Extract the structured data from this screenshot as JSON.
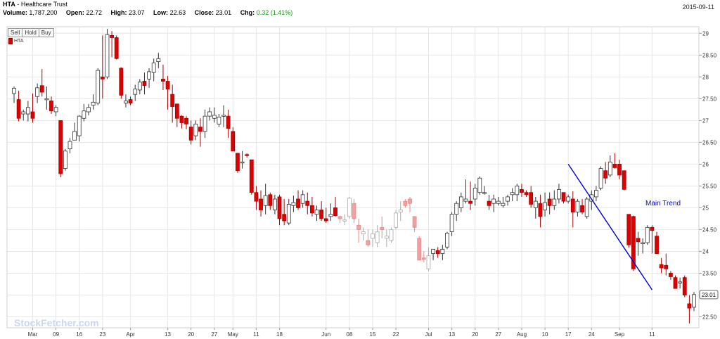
{
  "header": {
    "symbol": "HTA",
    "name": " - Healthcare Trust",
    "volume_label": "Volume:",
    "volume": "1,787,200",
    "open_label": "Open:",
    "open": "22.72",
    "high_label": "High:",
    "high": "23.07",
    "low_label": "Low:",
    "low": "22.63",
    "close_label": "Close:",
    "close": "23.01",
    "chg_label": "Chg:",
    "chg": "0.32 (1.41%)",
    "date": "2015-09-11"
  },
  "buttons": {
    "sell": "Sell",
    "hold": "Hold",
    "buy": "Buy"
  },
  "legend": {
    "label": "HTA"
  },
  "watermark": "StockFetcher.com",
  "colors": {
    "up": "#ffffff",
    "down": "#dd0000",
    "faded_down": "#f2a0a0",
    "trend": "#0000dd",
    "grid": "#e6e6e6"
  },
  "chart_data": {
    "type": "candlestick",
    "ylim": [
      22.25,
      29.15
    ],
    "y_ticks": [
      29,
      28.5,
      28,
      27.5,
      27,
      26.5,
      26,
      25.5,
      25,
      24.5,
      24,
      23.5,
      23,
      22.5
    ],
    "y_tick_labels": [
      "29",
      "28.50",
      "28",
      "27.50",
      "27",
      "26.50",
      "26",
      "25.50",
      "25",
      "24.50",
      "24",
      "23.50",
      "23",
      "22.50"
    ],
    "x_labels": [
      "Mar",
      "09",
      "16",
      "23",
      "Apr",
      "13",
      "20",
      "27",
      "May",
      "11",
      "18",
      "Jun",
      "08",
      "15",
      "22",
      "Jul",
      "13",
      "20",
      "27",
      "Aug",
      "10",
      "17",
      "24",
      "Sep",
      "11"
    ],
    "x_label_index": [
      4,
      9,
      14,
      19,
      25,
      33,
      38,
      43,
      47,
      52,
      57,
      67,
      72,
      77,
      82,
      89,
      94,
      99,
      104,
      109,
      114,
      119,
      124,
      130,
      137
    ],
    "last_price": "23.01",
    "annotation": "Main Trend",
    "trend_line": {
      "from": [
        119,
        26.0
      ],
      "to": [
        137,
        23.12
      ]
    },
    "candles": [
      [
        27.62,
        27.78,
        27.4,
        27.74
      ],
      [
        27.48,
        27.68,
        26.98,
        27.05
      ],
      [
        27.15,
        27.25,
        27.0,
        27.2
      ],
      [
        27.15,
        27.45,
        26.98,
        27.3
      ],
      [
        27.2,
        27.62,
        26.95,
        27.05
      ],
      [
        27.55,
        27.85,
        27.4,
        27.75
      ],
      [
        27.8,
        28.18,
        27.55,
        27.65
      ],
      [
        27.5,
        27.78,
        27.25,
        27.5
      ],
      [
        27.45,
        27.55,
        27.15,
        27.22
      ],
      [
        27.2,
        27.35,
        27.1,
        27.3
      ],
      [
        27.0,
        27.0,
        25.7,
        25.78
      ],
      [
        25.9,
        26.35,
        25.85,
        26.3
      ],
      [
        26.35,
        26.6,
        26.25,
        26.52
      ],
      [
        26.55,
        26.95,
        26.55,
        26.75
      ],
      [
        26.65,
        27.12,
        26.52,
        27.1
      ],
      [
        27.05,
        27.38,
        26.98,
        27.22
      ],
      [
        27.2,
        27.38,
        27.12,
        27.3
      ],
      [
        27.35,
        27.6,
        27.25,
        27.42
      ],
      [
        27.4,
        28.2,
        27.35,
        28.15
      ],
      [
        28.0,
        28.95,
        27.5,
        27.95
      ],
      [
        28.0,
        29.1,
        27.95,
        28.97
      ],
      [
        28.95,
        29.05,
        28.45,
        28.9
      ],
      [
        28.9,
        28.95,
        28.4,
        28.42
      ],
      [
        28.2,
        28.22,
        27.5,
        27.58
      ],
      [
        27.4,
        27.6,
        27.3,
        27.45
      ],
      [
        27.48,
        27.55,
        27.35,
        27.4
      ],
      [
        27.6,
        27.82,
        27.45,
        27.72
      ],
      [
        27.7,
        27.95,
        27.6,
        27.88
      ],
      [
        27.9,
        28.1,
        27.6,
        27.8
      ],
      [
        27.95,
        28.2,
        27.75,
        28.12
      ],
      [
        28.1,
        28.42,
        27.9,
        28.32
      ],
      [
        28.35,
        28.55,
        28.2,
        28.42
      ],
      [
        27.95,
        28.28,
        27.7,
        27.9
      ],
      [
        27.9,
        28.02,
        27.25,
        27.72
      ],
      [
        27.6,
        27.82,
        26.95,
        27.32
      ],
      [
        27.38,
        27.38,
        26.85,
        27.05
      ],
      [
        27.1,
        27.12,
        26.82,
        26.95
      ],
      [
        27.05,
        27.1,
        26.8,
        26.92
      ],
      [
        26.85,
        27.0,
        26.45,
        26.55
      ],
      [
        26.65,
        27.0,
        26.55,
        26.92
      ],
      [
        26.85,
        27.05,
        26.4,
        26.75
      ],
      [
        26.75,
        27.25,
        26.6,
        27.1
      ],
      [
        27.1,
        27.3,
        27.0,
        27.2
      ],
      [
        27.05,
        27.3,
        26.95,
        27.12
      ],
      [
        26.92,
        27.15,
        26.85,
        27.08
      ],
      [
        27.1,
        27.35,
        26.85,
        27.12
      ],
      [
        27.1,
        27.25,
        26.6,
        26.82
      ],
      [
        26.75,
        26.85,
        26.3,
        26.3
      ],
      [
        26.25,
        26.25,
        25.8,
        25.85
      ],
      [
        26.05,
        26.3,
        25.9,
        26.05
      ],
      [
        26.22,
        26.25,
        26.15,
        26.2
      ],
      [
        26.1,
        26.1,
        25.3,
        25.35
      ],
      [
        25.35,
        25.5,
        24.95,
        25.15
      ],
      [
        25.2,
        25.4,
        24.8,
        24.95
      ],
      [
        25.05,
        25.55,
        24.85,
        25.28
      ],
      [
        25.3,
        25.35,
        24.95,
        25.05
      ],
      [
        24.95,
        25.3,
        24.85,
        25.2
      ],
      [
        25.25,
        25.3,
        24.6,
        24.75
      ],
      [
        24.85,
        25.2,
        24.6,
        24.7
      ],
      [
        24.65,
        25.2,
        24.6,
        25.08
      ],
      [
        25.05,
        25.28,
        24.9,
        25.12
      ],
      [
        25.2,
        25.4,
        24.95,
        25.0
      ],
      [
        25.1,
        25.4,
        25.0,
        25.3
      ],
      [
        25.15,
        25.35,
        24.85,
        25.05
      ],
      [
        25.05,
        25.25,
        24.8,
        24.88
      ],
      [
        24.85,
        25.05,
        24.7,
        24.95
      ],
      [
        24.95,
        25.15,
        24.7,
        24.75
      ],
      [
        24.75,
        25.0,
        24.65,
        24.7
      ],
      [
        24.8,
        25.1,
        24.7,
        24.85
      ],
      [
        25.0,
        25.25,
        24.8,
        24.82
      ],
      [
        24.8,
        24.82,
        24.65,
        24.75
      ],
      [
        24.7,
        24.85,
        24.6,
        24.72
      ],
      [
        24.8,
        25.25,
        24.75,
        25.22
      ],
      [
        25.1,
        25.2,
        24.65,
        24.75
      ],
      [
        24.6,
        24.75,
        24.2,
        24.5
      ],
      [
        24.4,
        24.55,
        24.25,
        24.45
      ],
      [
        24.25,
        24.5,
        24.1,
        24.15
      ],
      [
        24.3,
        24.5,
        24.1,
        24.4
      ],
      [
        24.2,
        24.6,
        24.1,
        24.45
      ],
      [
        24.55,
        24.8,
        24.3,
        24.5
      ],
      [
        24.3,
        24.5,
        24.1,
        24.35
      ],
      [
        24.25,
        24.55,
        24.2,
        24.5
      ],
      [
        24.55,
        24.95,
        24.5,
        24.88
      ],
      [
        24.9,
        25.15,
        24.7,
        24.95
      ],
      [
        25.15,
        25.2,
        25.0,
        25.05
      ],
      [
        25.2,
        25.25,
        24.9,
        25.1
      ],
      [
        24.8,
        24.8,
        24.45,
        24.55
      ],
      [
        24.3,
        24.35,
        23.8,
        23.8
      ],
      [
        23.85,
        24.0,
        23.75,
        23.82
      ],
      [
        23.6,
        24.1,
        23.55,
        23.9
      ],
      [
        23.95,
        24.05,
        23.8,
        24.05
      ],
      [
        24.02,
        24.1,
        23.85,
        23.95
      ],
      [
        23.95,
        24.15,
        23.8,
        24.05
      ],
      [
        24.1,
        24.45,
        24.05,
        24.42
      ],
      [
        24.45,
        24.9,
        24.35,
        24.85
      ],
      [
        24.85,
        25.15,
        24.7,
        25.1
      ],
      [
        25.0,
        25.35,
        24.9,
        25.25
      ],
      [
        25.15,
        25.65,
        25.1,
        25.2
      ],
      [
        25.15,
        25.6,
        24.95,
        25.1
      ],
      [
        25.2,
        25.55,
        25.05,
        25.45
      ],
      [
        25.35,
        25.72,
        25.3,
        25.68
      ],
      [
        25.35,
        25.5,
        25.3,
        25.35
      ],
      [
        25.15,
        25.3,
        24.95,
        25.05
      ],
      [
        25.1,
        25.3,
        24.9,
        25.2
      ],
      [
        25.1,
        25.25,
        25.05,
        25.15
      ],
      [
        25.05,
        25.25,
        25.0,
        25.1
      ],
      [
        25.15,
        25.3,
        25.05,
        25.25
      ],
      [
        25.3,
        25.45,
        25.15,
        25.35
      ],
      [
        25.3,
        25.55,
        25.15,
        25.5
      ],
      [
        25.42,
        25.55,
        25.25,
        25.35
      ],
      [
        25.35,
        25.4,
        25.25,
        25.3
      ],
      [
        25.35,
        25.5,
        25.0,
        25.08
      ],
      [
        25.0,
        25.25,
        24.75,
        25.15
      ],
      [
        25.1,
        25.3,
        24.55,
        24.8
      ],
      [
        24.95,
        25.35,
        24.8,
        25.12
      ],
      [
        25.2,
        25.35,
        24.85,
        25.05
      ],
      [
        25.05,
        25.4,
        24.95,
        25.2
      ],
      [
        25.2,
        25.55,
        25.1,
        25.42
      ],
      [
        25.35,
        25.35,
        25.1,
        25.15
      ],
      [
        25.15,
        25.3,
        25.1,
        25.25
      ],
      [
        25.2,
        25.38,
        24.55,
        24.9
      ],
      [
        24.9,
        25.2,
        24.8,
        25.15
      ],
      [
        25.05,
        25.2,
        24.85,
        24.9
      ],
      [
        24.8,
        25.25,
        24.75,
        25.2
      ],
      [
        25.15,
        25.4,
        24.95,
        25.3
      ],
      [
        25.25,
        25.5,
        25.15,
        25.4
      ],
      [
        25.45,
        25.95,
        25.4,
        25.9
      ],
      [
        25.85,
        26.05,
        25.55,
        25.68
      ],
      [
        25.75,
        26.2,
        25.7,
        26.05
      ],
      [
        26.0,
        26.25,
        25.9,
        25.92
      ],
      [
        26.0,
        26.1,
        25.65,
        25.75
      ],
      [
        25.85,
        25.85,
        25.4,
        25.42
      ],
      [
        24.85,
        24.85,
        24.08,
        24.15
      ],
      [
        24.8,
        24.82,
        23.55,
        23.6
      ],
      [
        24.3,
        24.45,
        23.9,
        24.22
      ],
      [
        24.2,
        24.3,
        23.95,
        24.2
      ],
      [
        24.2,
        24.6,
        24.15,
        24.55
      ],
      [
        24.55,
        24.6,
        23.95,
        24.48
      ],
      [
        24.35,
        24.45,
        23.95,
        23.95
      ],
      [
        23.7,
        23.85,
        23.5,
        23.62
      ],
      [
        23.68,
        23.95,
        23.45,
        23.6
      ],
      [
        23.5,
        23.55,
        23.35,
        23.42
      ],
      [
        23.4,
        23.45,
        23.15,
        23.15
      ],
      [
        23.3,
        23.4,
        23.15,
        23.3
      ],
      [
        23.4,
        23.45,
        22.95,
        23.0
      ],
      [
        22.8,
        23.0,
        22.35,
        22.7
      ],
      [
        22.72,
        23.07,
        22.63,
        23.01
      ]
    ]
  }
}
